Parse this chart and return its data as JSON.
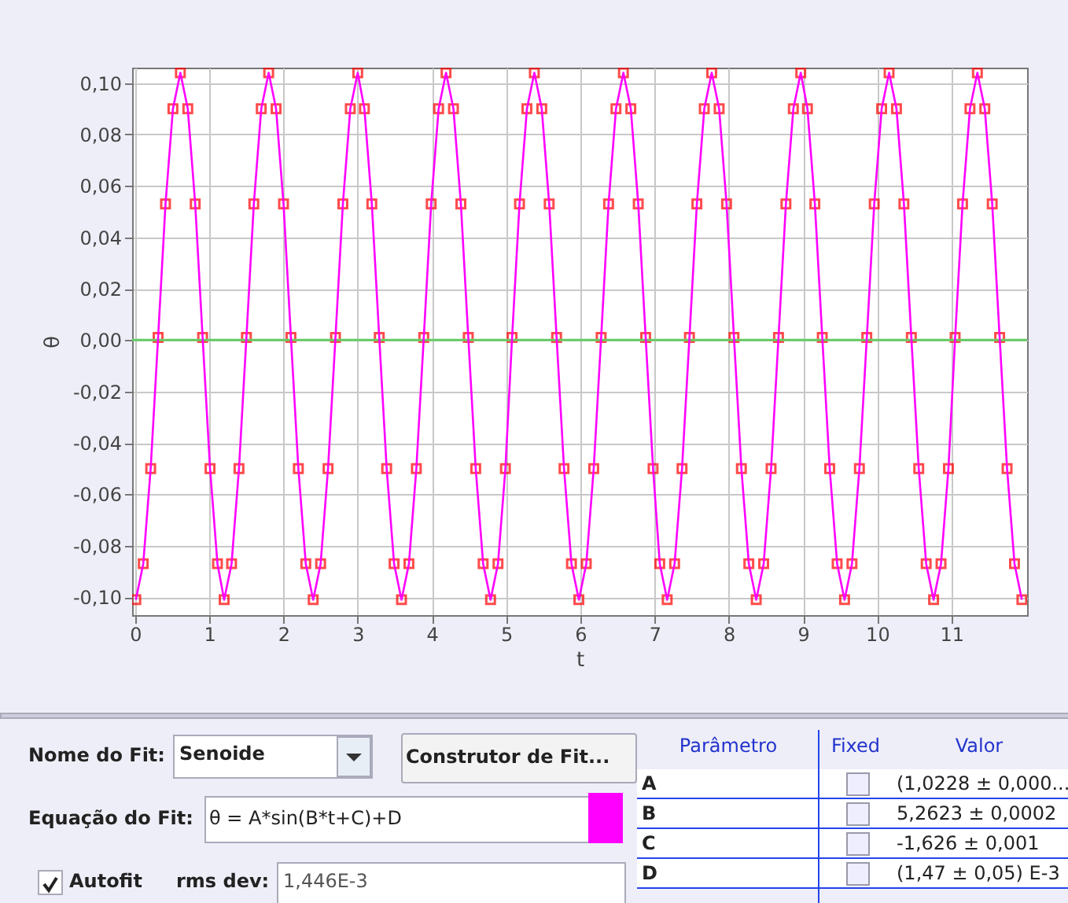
{
  "chart_data": {
    "type": "scatter",
    "xlabel": "t",
    "ylabel": "θ",
    "xlim": [
      -0.04,
      12.02
    ],
    "ylim": [
      -0.107,
      0.106
    ],
    "xticks": [
      0,
      1,
      2,
      3,
      4,
      5,
      6,
      7,
      8,
      9,
      10,
      11
    ],
    "yticks": [
      {
        "value": -0.1,
        "label": "-0,10"
      },
      {
        "value": -0.08,
        "label": "-0,08"
      },
      {
        "value": -0.06,
        "label": "-0,06"
      },
      {
        "value": -0.04,
        "label": "-0,04"
      },
      {
        "value": -0.02,
        "label": "-0,02"
      },
      {
        "value": 0,
        "label": "0,00"
      },
      {
        "value": 0.02,
        "label": "0,02"
      },
      {
        "value": 0.04,
        "label": "0,04"
      },
      {
        "value": 0.06,
        "label": "0,06"
      },
      {
        "value": 0.08,
        "label": "0,08"
      },
      {
        "value": 0.1,
        "label": "0,10"
      }
    ],
    "grid": true,
    "ref_lines": [
      {
        "axis": "y",
        "value": 0,
        "color": "#66cc66"
      }
    ],
    "x": [
      0.01,
      0.11,
      0.21,
      0.31,
      0.41,
      0.51,
      0.61,
      0.71,
      0.81,
      0.91,
      1.01,
      1.11,
      1.2,
      1.3,
      1.4,
      1.5,
      1.6,
      1.7,
      1.8,
      1.9,
      2.0,
      2.1,
      2.2,
      2.3,
      2.4,
      2.5,
      2.6,
      2.7,
      2.8,
      2.9,
      3.0,
      3.09,
      3.19,
      3.29,
      3.39,
      3.49,
      3.59,
      3.69,
      3.79,
      3.89,
      3.99,
      4.09,
      4.19,
      4.29,
      4.39,
      4.49,
      4.59,
      4.69,
      4.79,
      4.89,
      4.99,
      5.08,
      5.18,
      5.28,
      5.38,
      5.48,
      5.58,
      5.68,
      5.78,
      5.88,
      5.98,
      6.08,
      6.18,
      6.28,
      6.38,
      6.48,
      6.58,
      6.68,
      6.78,
      6.88,
      6.98,
      7.07,
      7.17,
      7.27,
      7.37,
      7.47,
      7.57,
      7.67,
      7.77,
      7.87,
      7.97,
      8.07,
      8.17,
      8.27,
      8.37,
      8.47,
      8.57,
      8.67,
      8.77,
      8.87,
      8.97,
      9.06,
      9.16,
      9.26,
      9.36,
      9.46,
      9.56,
      9.66,
      9.76,
      9.86,
      9.96,
      10.06,
      10.16,
      10.26,
      10.36,
      10.46,
      10.56,
      10.66,
      10.76,
      10.86,
      10.96,
      11.05,
      11.15,
      11.25,
      11.35,
      11.45,
      11.55,
      11.65,
      11.75,
      11.85,
      11.95
    ],
    "series": [
      {
        "marker": "square",
        "color": "#ff0000",
        "values": [
          -0.101,
          -0.087,
          -0.05,
          0.001,
          0.053,
          0.09,
          0.104,
          0.09,
          0.053,
          0.001,
          -0.05,
          -0.087,
          -0.101,
          -0.087,
          -0.05,
          0.001,
          0.053,
          0.09,
          0.104,
          0.09,
          0.053,
          0.001,
          -0.05,
          -0.087,
          -0.101,
          -0.087,
          -0.05,
          0.001,
          0.053,
          0.09,
          0.104,
          0.09,
          0.053,
          0.001,
          -0.05,
          -0.087,
          -0.101,
          -0.087,
          -0.05,
          0.001,
          0.053,
          0.09,
          0.104,
          0.09,
          0.053,
          0.001,
          -0.05,
          -0.087,
          -0.101,
          -0.087,
          -0.05,
          0.001,
          0.053,
          0.09,
          0.104,
          0.09,
          0.053,
          0.001,
          -0.05,
          -0.087,
          -0.101,
          -0.087,
          -0.05,
          0.001,
          0.053,
          0.09,
          0.104,
          0.09,
          0.053,
          0.001,
          -0.05,
          -0.087,
          -0.101,
          -0.087,
          -0.05,
          0.001,
          0.053,
          0.09,
          0.104,
          0.09,
          0.053,
          0.001,
          -0.05,
          -0.087,
          -0.101,
          -0.087,
          -0.05,
          0.001,
          0.053,
          0.09,
          0.104,
          0.09,
          0.053,
          0.001,
          -0.05,
          -0.087,
          -0.101,
          -0.087,
          -0.05,
          0.001,
          0.053,
          0.09,
          0.104,
          0.09,
          0.053,
          0.001,
          -0.05,
          -0.087,
          -0.101,
          -0.087,
          -0.05,
          0.001,
          0.053,
          0.09,
          0.104,
          0.09,
          0.053,
          0.001,
          -0.05,
          -0.087,
          -0.101
        ]
      },
      {
        "type": "line",
        "color": "#ff00ff",
        "values": [
          -0.101,
          -0.087,
          -0.05,
          0.001,
          0.053,
          0.09,
          0.104,
          0.09,
          0.053,
          0.001,
          -0.05,
          -0.087,
          -0.101,
          -0.087,
          -0.05,
          0.001,
          0.053,
          0.09,
          0.104,
          0.09,
          0.053,
          0.001,
          -0.05,
          -0.087,
          -0.101,
          -0.087,
          -0.05,
          0.001,
          0.053,
          0.09,
          0.104,
          0.09,
          0.053,
          0.001,
          -0.05,
          -0.087,
          -0.101,
          -0.087,
          -0.05,
          0.001,
          0.053,
          0.09,
          0.104,
          0.09,
          0.053,
          0.001,
          -0.05,
          -0.087,
          -0.101,
          -0.087,
          -0.05,
          0.001,
          0.053,
          0.09,
          0.104,
          0.09,
          0.053,
          0.001,
          -0.05,
          -0.087,
          -0.101,
          -0.087,
          -0.05,
          0.001,
          0.053,
          0.09,
          0.104,
          0.09,
          0.053,
          0.001,
          -0.05,
          -0.087,
          -0.101,
          -0.087,
          -0.05,
          0.001,
          0.053,
          0.09,
          0.104,
          0.09,
          0.053,
          0.001,
          -0.05,
          -0.087,
          -0.101,
          -0.087,
          -0.05,
          0.001,
          0.053,
          0.09,
          0.104,
          0.09,
          0.053,
          0.001,
          -0.05,
          -0.087,
          -0.101,
          -0.087,
          -0.05,
          0.001,
          0.053,
          0.09,
          0.104,
          0.09,
          0.053,
          0.001,
          -0.05,
          -0.087,
          -0.101,
          -0.087,
          -0.05,
          0.001,
          0.053,
          0.09,
          0.104,
          0.09,
          0.053,
          0.001,
          -0.05,
          -0.087,
          -0.101
        ]
      }
    ],
    "annotations": [
      "Nome do Fit:",
      "Senoide",
      "Construtor de Fit...",
      "Equação do Fit:",
      "θ = A*sin(B*t+C)+D",
      "Autofit",
      "rms dev:",
      "1,446E-3",
      "Parâmetro",
      "Fixed",
      "Valor",
      "A",
      "(1,0228 ± 0,000...",
      "B",
      "5,2623 ± 0,0002",
      "C",
      "-1,626 ± 0,001",
      "D",
      "(1,47 ± 0,05) E-3"
    ]
  }
}
